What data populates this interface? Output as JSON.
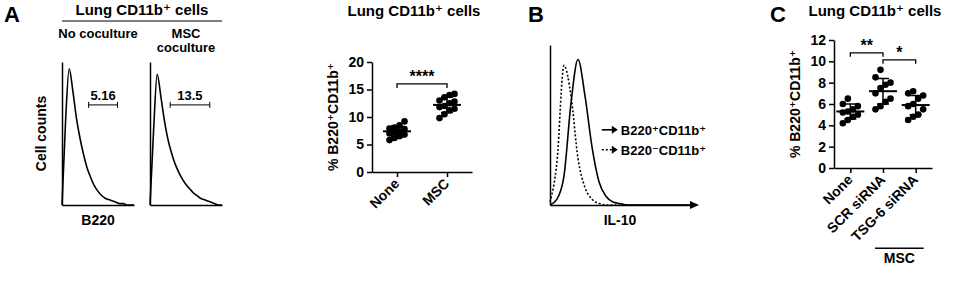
{
  "chart_data": [
    {
      "type": "line",
      "panel": "A",
      "title": "Lung CD11b⁺ cells",
      "subtitle": "No coculture",
      "x_label": "B220",
      "y_label": "Cell counts",
      "x": [
        0,
        5,
        10,
        15,
        20,
        25,
        30,
        35,
        40,
        45,
        50,
        55,
        60,
        65,
        70,
        75,
        80,
        85,
        90,
        95,
        100
      ],
      "values": [
        0,
        62,
        100,
        84,
        64,
        49,
        37,
        27,
        20,
        14,
        10,
        7,
        5,
        4,
        3,
        2,
        1,
        1,
        0,
        0,
        0
      ],
      "xlim": [
        0,
        100
      ],
      "ylim": [
        0,
        105
      ],
      "tick_labels": false,
      "color": "#000000",
      "gate": {
        "x": [
          37,
          77
        ],
        "value": 5.16
      }
    },
    {
      "type": "line",
      "subtitle": "MSC coculture",
      "x": [
        0,
        5,
        10,
        15,
        20,
        25,
        30,
        35,
        40,
        45,
        50,
        55,
        60,
        65,
        70,
        75,
        80,
        85,
        90,
        95,
        100
      ],
      "values": [
        0,
        55,
        96,
        80,
        62,
        48,
        38,
        30,
        24,
        19,
        15,
        12,
        9,
        7,
        5,
        4,
        3,
        2,
        1,
        0,
        0
      ],
      "xlim": [
        0,
        100
      ],
      "ylim": [
        0,
        105
      ],
      "tick_labels": false,
      "color": "#000000",
      "gate": {
        "x": [
          28,
          83
        ],
        "value": 13.5
      }
    },
    {
      "type": "scatter",
      "title": "Lung CD11b⁺ cells",
      "y_label": "% B220⁺CD11b⁺",
      "categories": [
        "None",
        "MSC"
      ],
      "values": [
        [
          7.0,
          8.5,
          6.2,
          7.8,
          9.2,
          6.8,
          7.4,
          8.1,
          5.8,
          7.2,
          7.9,
          6.5
        ],
        [
          14.2,
          13.0,
          12.5,
          11.8,
          13.6,
          10.5,
          12.0,
          14.0,
          11.2,
          9.8,
          12.8,
          11.5
        ]
      ],
      "mean": [
        7.4,
        12.2
      ],
      "error": [
        1.0,
        1.4
      ],
      "ylim": [
        0,
        20
      ],
      "yticks": [
        0,
        5,
        10,
        15,
        20
      ],
      "color": "#000000",
      "significance": [
        {
          "from": "None",
          "to": "MSC",
          "label": "****"
        }
      ]
    },
    {
      "type": "line",
      "panel": "B",
      "x_label": "IL-10",
      "x": [
        0,
        5,
        10,
        15,
        20,
        25,
        30,
        35,
        40,
        45,
        50,
        55,
        60,
        65,
        70,
        75,
        80,
        85,
        90,
        95,
        100
      ],
      "series": [
        {
          "name": "B220⁺CD11b⁺",
          "color": "#000000",
          "line_style": "solid",
          "values": [
            0,
            4,
            20,
            70,
            100,
            75,
            40,
            16,
            6,
            2,
            1,
            0,
            0,
            0,
            0,
            0,
            0,
            0,
            0,
            0,
            0
          ]
        },
        {
          "name": "B220⁻CD11b⁺",
          "color": "#000000",
          "line_style": "dotted",
          "values": [
            2,
            30,
            96,
            75,
            32,
            12,
            4,
            1,
            0,
            0,
            0,
            0,
            0,
            0,
            0,
            0,
            0,
            0,
            0,
            0,
            0
          ]
        }
      ],
      "xlim": [
        0,
        100
      ],
      "ylim": [
        0,
        110
      ],
      "tick_labels": false,
      "legend": "right"
    },
    {
      "type": "scatter",
      "panel": "C",
      "title": "Lung CD11b⁺ cells",
      "y_label": "% B220⁺CD11b⁺",
      "categories": [
        "None",
        "SCR siRNA",
        "TSG-6 siRNA"
      ],
      "values": [
        [
          4.2,
          5.0,
          5.5,
          6.0,
          4.8,
          5.3,
          6.5,
          4.5,
          5.8,
          5.2
        ],
        [
          9.2,
          8.5,
          7.8,
          6.5,
          7.0,
          5.5,
          8.0,
          6.2,
          7.5,
          5.8
        ],
        [
          7.2,
          6.8,
          5.0,
          4.5,
          6.0,
          5.5,
          6.5,
          5.8,
          7.0,
          4.8
        ]
      ],
      "mean": [
        5.3,
        7.2,
        5.9
      ],
      "error": [
        0.7,
        1.2,
        0.9
      ],
      "ylim": [
        0,
        12
      ],
      "yticks": [
        0,
        2,
        4,
        6,
        8,
        10,
        12
      ],
      "color": "#000000",
      "significance": [
        {
          "from": "None",
          "to": "SCR siRNA",
          "label": "**"
        },
        {
          "from": "SCR siRNA",
          "to": "TSG-6 siRNA",
          "label": "*"
        }
      ],
      "groups": [
        {
          "label": "MSC",
          "categories": [
            "SCR siRNA",
            "TSG-6 siRNA"
          ]
        }
      ]
    }
  ]
}
